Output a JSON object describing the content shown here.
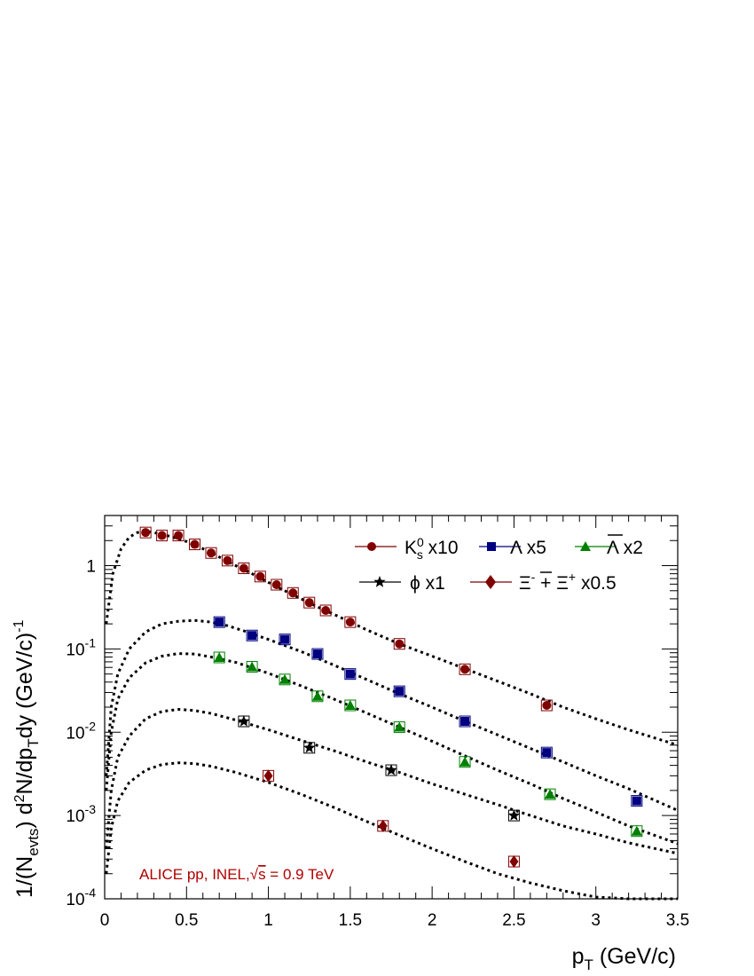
{
  "chart_data": {
    "type": "scatter",
    "xlabel": "p_T (GeV/c)",
    "ylabel": "1/(N_evts) d²N/dp_T dy (GeV/c)⁻¹",
    "xlim": [
      0,
      3.5
    ],
    "ylim": [
      0.0001,
      4
    ],
    "yscale": "log",
    "x_ticks": [
      0,
      0.5,
      1,
      1.5,
      2,
      2.5,
      3,
      3.5
    ],
    "x_tick_labels": [
      "0",
      "0.5",
      "1",
      "1.5",
      "2",
      "2.5",
      "3",
      "3.5"
    ],
    "y_ticks": [
      0.0001,
      0.001,
      0.01,
      0.1,
      1
    ],
    "y_tick_labels": [
      "10^-4",
      "10^-3",
      "10^-2",
      "10^-1",
      "1"
    ],
    "grid": false,
    "legend_position": "top-right",
    "annotation": {
      "text_prefix": "ALICE pp, INEL,",
      "sqrt": "√",
      "text_var": "s",
      "text_suffix": " = 0.9 TeV",
      "color": "#b00000"
    },
    "series": [
      {
        "name": "K_s^0 x10",
        "marker": "circle",
        "color": "#800000",
        "x": [
          0.25,
          0.35,
          0.45,
          0.55,
          0.65,
          0.75,
          0.85,
          0.95,
          1.05,
          1.15,
          1.25,
          1.35,
          1.5,
          1.8,
          2.2,
          2.7
        ],
        "y": [
          2.5,
          2.3,
          2.3,
          1.8,
          1.42,
          1.15,
          0.93,
          0.74,
          0.59,
          0.47,
          0.36,
          0.29,
          0.21,
          0.115,
          0.057,
          0.021
        ],
        "fit": [
          [
            0.01,
            0.2
          ],
          [
            0.05,
            0.8
          ],
          [
            0.1,
            1.6
          ],
          [
            0.15,
            2.2
          ],
          [
            0.2,
            2.5
          ],
          [
            0.25,
            2.6
          ],
          [
            0.3,
            2.5
          ],
          [
            0.4,
            2.25
          ],
          [
            0.5,
            1.95
          ],
          [
            0.6,
            1.6
          ],
          [
            0.7,
            1.27
          ],
          [
            0.8,
            1.0
          ],
          [
            0.9,
            0.8
          ],
          [
            1.0,
            0.63
          ],
          [
            1.1,
            0.5
          ],
          [
            1.2,
            0.4
          ],
          [
            1.3,
            0.32
          ],
          [
            1.4,
            0.26
          ],
          [
            1.5,
            0.21
          ],
          [
            1.6,
            0.17
          ],
          [
            1.8,
            0.115
          ],
          [
            2.0,
            0.082
          ],
          [
            2.2,
            0.058
          ],
          [
            2.4,
            0.041
          ],
          [
            2.6,
            0.029
          ],
          [
            2.8,
            0.02
          ],
          [
            3.0,
            0.0145
          ],
          [
            3.2,
            0.0107
          ],
          [
            3.5,
            0.007
          ]
        ]
      },
      {
        "name": "Λ x5",
        "marker": "square",
        "color": "#000080",
        "x": [
          0.7,
          0.9,
          1.1,
          1.3,
          1.5,
          1.8,
          2.2,
          2.7,
          3.25
        ],
        "y": [
          0.21,
          0.145,
          0.13,
          0.087,
          0.05,
          0.031,
          0.0135,
          0.0057,
          0.0015
        ],
        "fit": [
          [
            0.01,
            0.003
          ],
          [
            0.04,
            0.02
          ],
          [
            0.08,
            0.05
          ],
          [
            0.15,
            0.1
          ],
          [
            0.25,
            0.16
          ],
          [
            0.35,
            0.2
          ],
          [
            0.45,
            0.215
          ],
          [
            0.55,
            0.22
          ],
          [
            0.65,
            0.21
          ],
          [
            0.75,
            0.19
          ],
          [
            0.85,
            0.165
          ],
          [
            1.0,
            0.13
          ],
          [
            1.2,
            0.093
          ],
          [
            1.4,
            0.064
          ],
          [
            1.6,
            0.043
          ],
          [
            1.8,
            0.029
          ],
          [
            2.0,
            0.02
          ],
          [
            2.2,
            0.0135
          ],
          [
            2.4,
            0.0093
          ],
          [
            2.6,
            0.0064
          ],
          [
            2.8,
            0.0044
          ],
          [
            3.0,
            0.003
          ],
          [
            3.2,
            0.0021
          ],
          [
            3.5,
            0.00115
          ]
        ]
      },
      {
        "name": "Λ̄ x2",
        "marker": "triangle",
        "color": "#008000",
        "x": [
          0.7,
          0.9,
          1.1,
          1.3,
          1.5,
          1.8,
          2.2,
          2.72,
          3.25
        ],
        "y": [
          0.079,
          0.061,
          0.043,
          0.027,
          0.021,
          0.0115,
          0.0044,
          0.0018,
          0.00065
        ],
        "fit": [
          [
            0.01,
            0.002
          ],
          [
            0.04,
            0.01
          ],
          [
            0.08,
            0.025
          ],
          [
            0.15,
            0.045
          ],
          [
            0.25,
            0.068
          ],
          [
            0.35,
            0.082
          ],
          [
            0.45,
            0.088
          ],
          [
            0.55,
            0.087
          ],
          [
            0.65,
            0.08
          ],
          [
            0.8,
            0.069
          ],
          [
            1.0,
            0.051
          ],
          [
            1.2,
            0.036
          ],
          [
            1.4,
            0.025
          ],
          [
            1.6,
            0.017
          ],
          [
            1.8,
            0.0115
          ],
          [
            2.0,
            0.0078
          ],
          [
            2.2,
            0.0052
          ],
          [
            2.4,
            0.0035
          ],
          [
            2.6,
            0.0024
          ],
          [
            2.8,
            0.0016
          ],
          [
            3.0,
            0.0011
          ],
          [
            3.2,
            0.00075
          ],
          [
            3.5,
            0.00046
          ]
        ]
      },
      {
        "name": "φ x1",
        "marker": "star",
        "color": "#000000",
        "x": [
          0.85,
          1.25,
          1.75,
          2.5
        ],
        "y": [
          0.0135,
          0.0065,
          0.0035,
          0.001
        ],
        "fit": [
          [
            0.01,
            0.0004
          ],
          [
            0.04,
            0.002
          ],
          [
            0.08,
            0.005
          ],
          [
            0.15,
            0.009
          ],
          [
            0.25,
            0.0145
          ],
          [
            0.35,
            0.0178
          ],
          [
            0.45,
            0.0188
          ],
          [
            0.55,
            0.0182
          ],
          [
            0.65,
            0.0168
          ],
          [
            0.8,
            0.014
          ],
          [
            1.0,
            0.0107
          ],
          [
            1.2,
            0.008
          ],
          [
            1.4,
            0.006
          ],
          [
            1.6,
            0.0044
          ],
          [
            1.8,
            0.0033
          ],
          [
            2.0,
            0.0024
          ],
          [
            2.2,
            0.0018
          ],
          [
            2.4,
            0.00135
          ],
          [
            2.6,
            0.001
          ],
          [
            2.8,
            0.00075
          ],
          [
            3.0,
            0.0006
          ],
          [
            3.2,
            0.00047
          ],
          [
            3.5,
            0.00035
          ]
        ]
      },
      {
        "name": "Ξ⁻ + Ξ̄⁺ x0.5",
        "marker": "diamond",
        "color": "#800000",
        "x": [
          1.0,
          1.7,
          2.5
        ],
        "y": [
          0.003,
          0.00075,
          0.00028
        ],
        "fit": [
          [
            0.01,
            0.0002
          ],
          [
            0.04,
            0.0007
          ],
          [
            0.08,
            0.0015
          ],
          [
            0.15,
            0.0025
          ],
          [
            0.25,
            0.0035
          ],
          [
            0.35,
            0.0041
          ],
          [
            0.45,
            0.0043
          ],
          [
            0.55,
            0.0042
          ],
          [
            0.65,
            0.0039
          ],
          [
            0.8,
            0.0033
          ],
          [
            1.0,
            0.0025
          ],
          [
            1.2,
            0.0018
          ],
          [
            1.4,
            0.00125
          ],
          [
            1.6,
            0.00085
          ],
          [
            1.8,
            0.00058
          ],
          [
            2.0,
            0.0004
          ],
          [
            2.2,
            0.00028
          ],
          [
            2.4,
            0.0002
          ],
          [
            2.6,
            0.000155
          ],
          [
            2.8,
            0.000125
          ],
          [
            3.0,
            0.000105
          ],
          [
            3.2,
            0.0001
          ],
          [
            3.5,
            0.0001
          ]
        ]
      }
    ]
  }
}
